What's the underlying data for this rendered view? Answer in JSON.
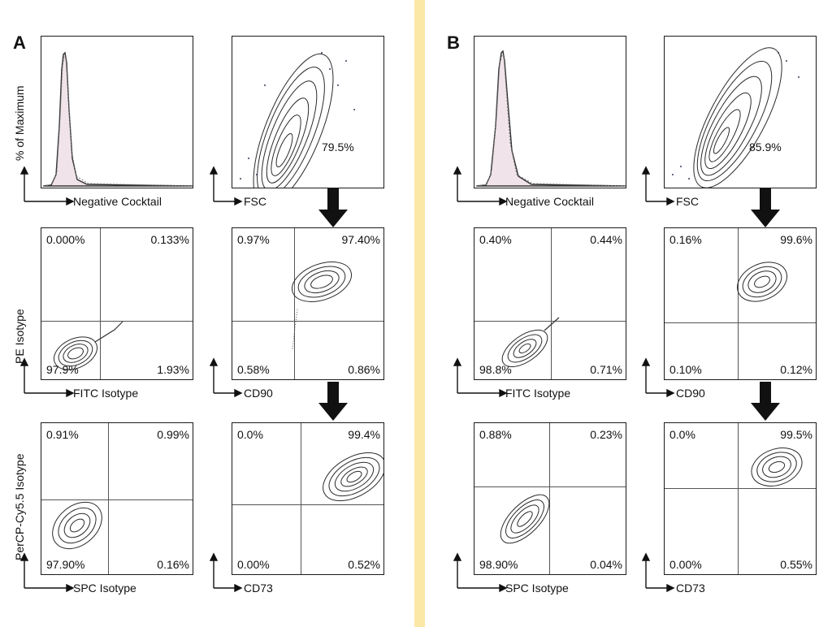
{
  "panels": [
    {
      "letter": "A",
      "histogram": {
        "xlabel": "Negative Cocktail",
        "ylabel": "% of Maximum"
      },
      "fsc": {
        "xlabel": "FSC",
        "gate_pct": "79.5%"
      },
      "isotype1": {
        "xlabel": "FITC Isotype",
        "ylabel": "PE Isotype",
        "ul": "0.000%",
        "ur": "0.133%",
        "ll": "97.9%",
        "lr": "1.93%"
      },
      "cd90": {
        "xlabel": "CD90",
        "ul": "0.97%",
        "ur": "97.40%",
        "ll": "0.58%",
        "lr": "0.86%"
      },
      "isotype2": {
        "xlabel": "SPC Isotype",
        "ylabel": "PerCP-Cy5.5 Isotype",
        "ul": "0.91%",
        "ur": "0.99%",
        "ll": "97.90%",
        "lr": "0.16%"
      },
      "cd73": {
        "xlabel": "CD73",
        "ul": "0.0%",
        "ur": "99.4%",
        "ll": "0.00%",
        "lr": "0.52%"
      }
    },
    {
      "letter": "B",
      "histogram": {
        "xlabel": "Negative Cocktail",
        "ylabel": ""
      },
      "fsc": {
        "xlabel": "FSC",
        "gate_pct": "85.9%"
      },
      "isotype1": {
        "xlabel": "FITC Isotype",
        "ylabel": "",
        "ul": "0.40%",
        "ur": "0.44%",
        "ll": "98.8%",
        "lr": "0.71%"
      },
      "cd90": {
        "xlabel": "CD90",
        "ul": "0.16%",
        "ur": "99.6%",
        "ll": "0.10%",
        "lr": "0.12%"
      },
      "isotype2": {
        "xlabel": "SPC Isotype",
        "ylabel": "",
        "ul": "0.88%",
        "ur": "0.23%",
        "ll": "98.90%",
        "lr": "0.04%"
      },
      "cd73": {
        "xlabel": "CD73",
        "ul": "0.0%",
        "ur": "99.5%",
        "ll": "0.00%",
        "lr": "0.55%"
      }
    }
  ],
  "colors": {
    "divider": "#fbe7a6",
    "histogram_fill": "#f1e3ea",
    "contour": "#2a2a2a"
  }
}
